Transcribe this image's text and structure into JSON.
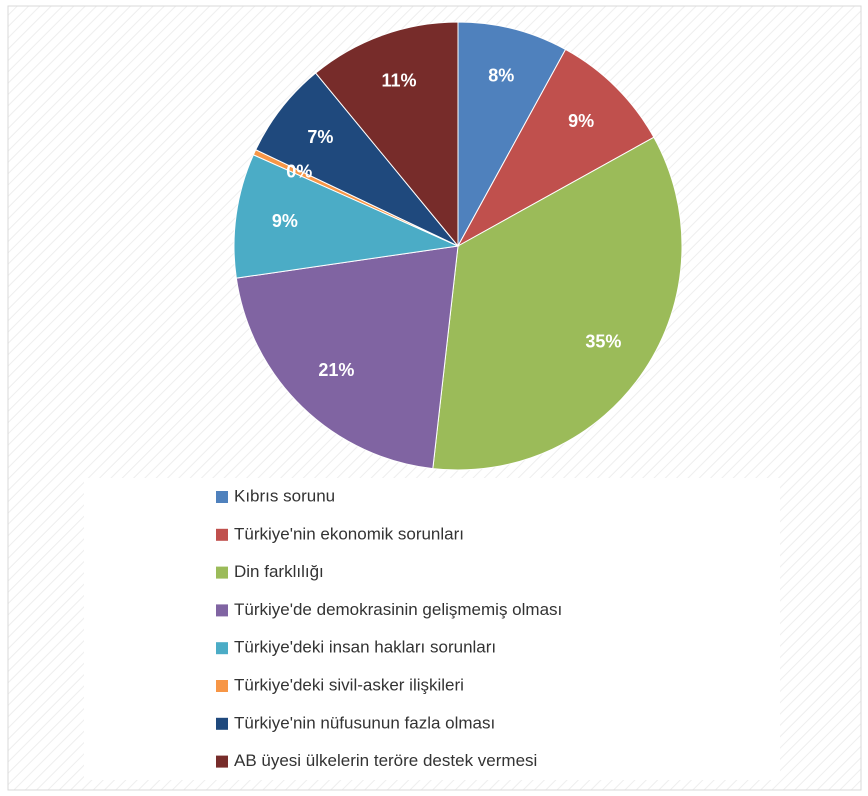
{
  "chart_data": {
    "type": "pie",
    "categories": [
      "Kıbrıs sorunu",
      "Türkiye'nin ekonomik sorunları",
      "Din farklılığı",
      "Türkiye'de demokrasinin gelişmemiş olması",
      "Türkiye'deki insan hakları sorunları",
      "Türkiye'deki sivil-asker ilişkileri",
      "Türkiye'nin nüfusunun fazla olması",
      "AB üyesi ülkelerin teröre destek vermesi"
    ],
    "values": [
      8,
      9,
      35,
      21,
      9,
      0.4,
      7,
      11
    ],
    "value_labels": [
      "8%",
      "9%",
      "35%",
      "21%",
      "9%",
      "0%",
      "7%",
      "11%"
    ],
    "colors": [
      "#4f81bd",
      "#c0504d",
      "#9bbb59",
      "#8064a2",
      "#4bacc6",
      "#f79646",
      "#1f497d",
      "#772c2a"
    ],
    "legend": "bottom"
  }
}
